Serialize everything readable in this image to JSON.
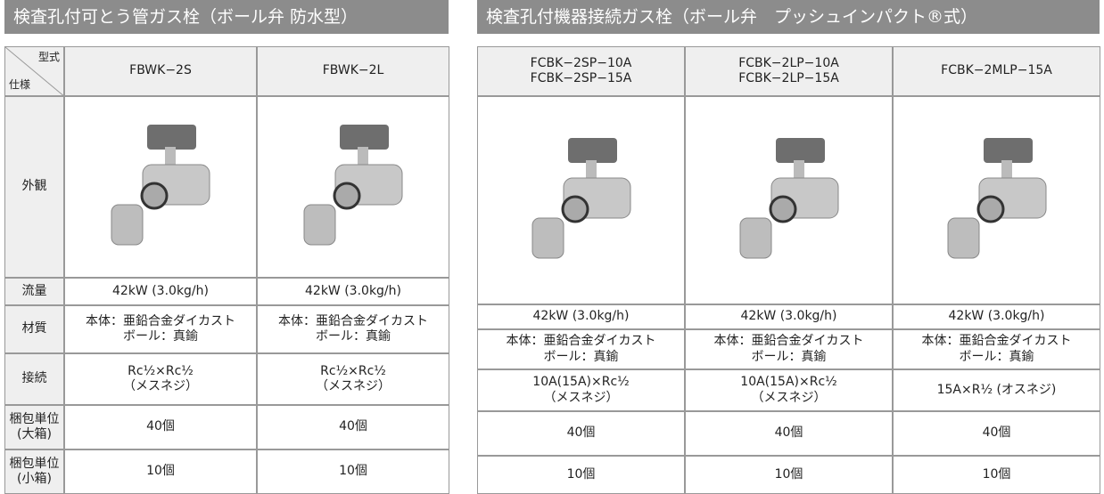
{
  "left": {
    "title": "検査孔付可とう管ガス栓（ボール弁 防水型）",
    "corner": {
      "top": "型式",
      "bottom": "仕様"
    },
    "models": [
      [
        "FBWK−2S"
      ],
      [
        "FBWK−2L"
      ]
    ],
    "row_labels": [
      [
        "外観"
      ],
      [
        "流量"
      ],
      [
        "材質"
      ],
      [
        "接続"
      ],
      [
        "梱包単位",
        "(大箱)"
      ],
      [
        "梱包単位",
        "(小箱)"
      ]
    ],
    "rows": [
      [
        [
          "42kW (3.0kg/h)"
        ],
        [
          "42kW (3.0kg/h)"
        ]
      ],
      [
        [
          "本体：亜鉛合金ダイカスト",
          "ボール：真鍮"
        ],
        [
          "本体：亜鉛合金ダイカスト",
          "ボール：真鍮"
        ]
      ],
      [
        [
          "Rc½×Rc½",
          "（メスネジ）"
        ],
        [
          "Rc½×Rc½",
          "（メスネジ）"
        ]
      ],
      [
        [
          "40個"
        ],
        [
          "40個"
        ]
      ],
      [
        [
          "10個"
        ],
        [
          "10個"
        ]
      ]
    ]
  },
  "right": {
    "title": "検査孔付機器接続ガス栓（ボール弁　プッシュインパクト®式）",
    "models": [
      [
        "FCBK−2SP−10A",
        "FCBK−2SP−15A"
      ],
      [
        "FCBK−2LP−10A",
        "FCBK−2LP−15A"
      ],
      [
        "FCBK−2MLP−15A"
      ]
    ],
    "rows": [
      [
        [
          "42kW (3.0kg/h)"
        ],
        [
          "42kW (3.0kg/h)"
        ],
        [
          "42kW (3.0kg/h)"
        ]
      ],
      [
        [
          "本体：亜鉛合金ダイカスト",
          "ボール：真鍮"
        ],
        [
          "本体：亜鉛合金ダイカスト",
          "ボール：真鍮"
        ],
        [
          "本体：亜鉛合金ダイカスト",
          "ボール：真鍮"
        ]
      ],
      [
        [
          "10A(15A)×Rc½",
          "（メスネジ）"
        ],
        [
          "10A(15A)×Rc½",
          "（メスネジ）"
        ],
        [
          "15A×R½ (オスネジ)"
        ]
      ],
      [
        [
          "40個"
        ],
        [
          "40個"
        ],
        [
          "40個"
        ]
      ],
      [
        [
          "10個"
        ],
        [
          "10個"
        ],
        [
          "10個"
        ]
      ]
    ]
  }
}
